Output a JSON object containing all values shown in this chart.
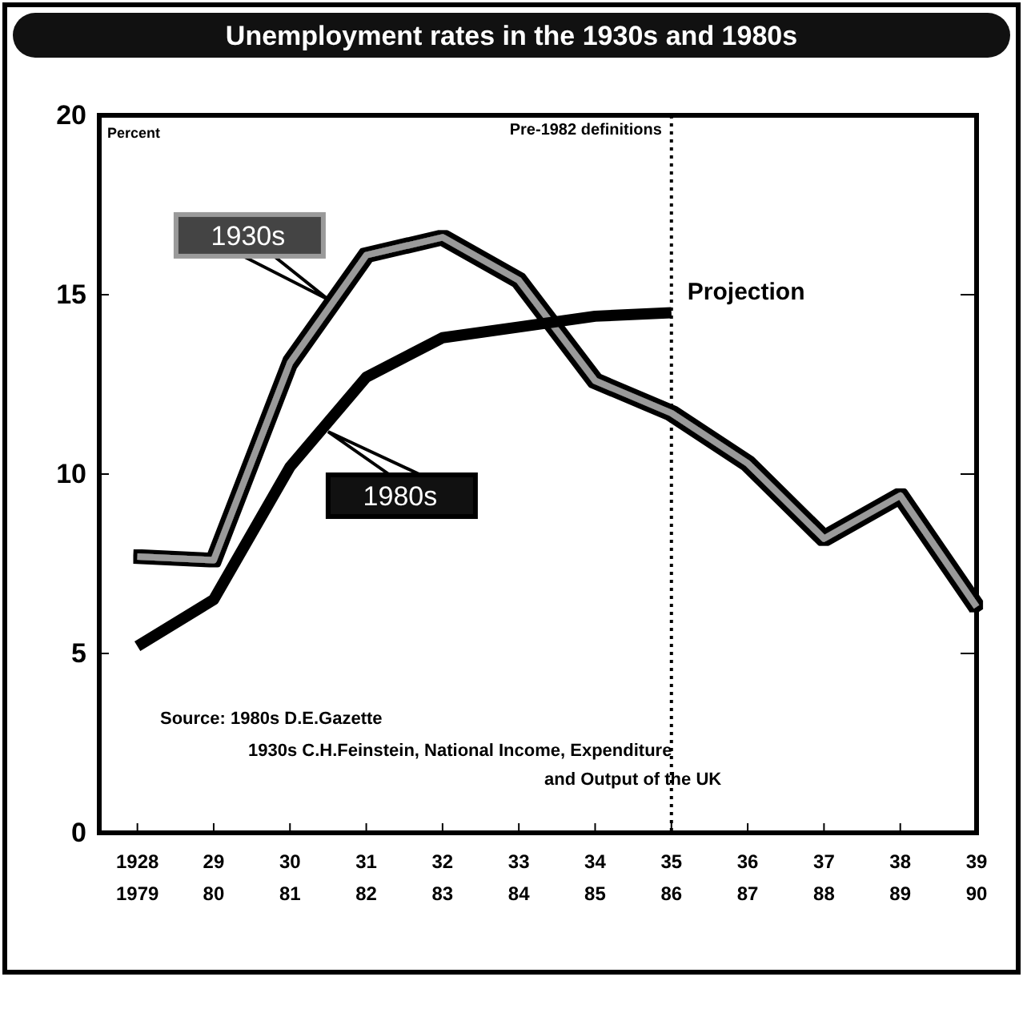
{
  "chart_data": {
    "type": "line",
    "title": "Unemployment rates in the 1930s and 1980s",
    "ylabel": "Percent",
    "ylim": [
      0,
      20
    ],
    "yticks": [
      0,
      5,
      10,
      15,
      20
    ],
    "categories": [
      "1928\n1979",
      "29\n80",
      "30\n81",
      "31\n82",
      "32\n83",
      "33\n84",
      "34\n85",
      "35\n86",
      "36\n87",
      "37\n88",
      "38\n89",
      "39\n90"
    ],
    "series": [
      {
        "name": "1930s",
        "color": "#9a9a9a",
        "values": [
          7.7,
          7.6,
          13.1,
          16.1,
          16.6,
          15.4,
          12.6,
          11.7,
          10.3,
          8.2,
          9.4,
          6.3
        ]
      },
      {
        "name": "1980s",
        "color": "#000000",
        "values": [
          5.2,
          6.5,
          10.2,
          12.7,
          13.8,
          14.1,
          14.4,
          14.5,
          null,
          null,
          null,
          null
        ]
      }
    ],
    "ref_lines": [
      {
        "axis": "x",
        "value": "35\n86",
        "label": "Pre-1982 definitions",
        "line_style": "dotted"
      }
    ],
    "annotations": [
      {
        "text": "Projection",
        "x": "35\n86",
        "y": 14.5
      },
      "Source:  1980s  D.E.Gazette",
      "1930s  C.H.Feinstein, National Income, Expenditure",
      "and Output of the UK"
    ],
    "grid": false,
    "marker": "none"
  }
}
